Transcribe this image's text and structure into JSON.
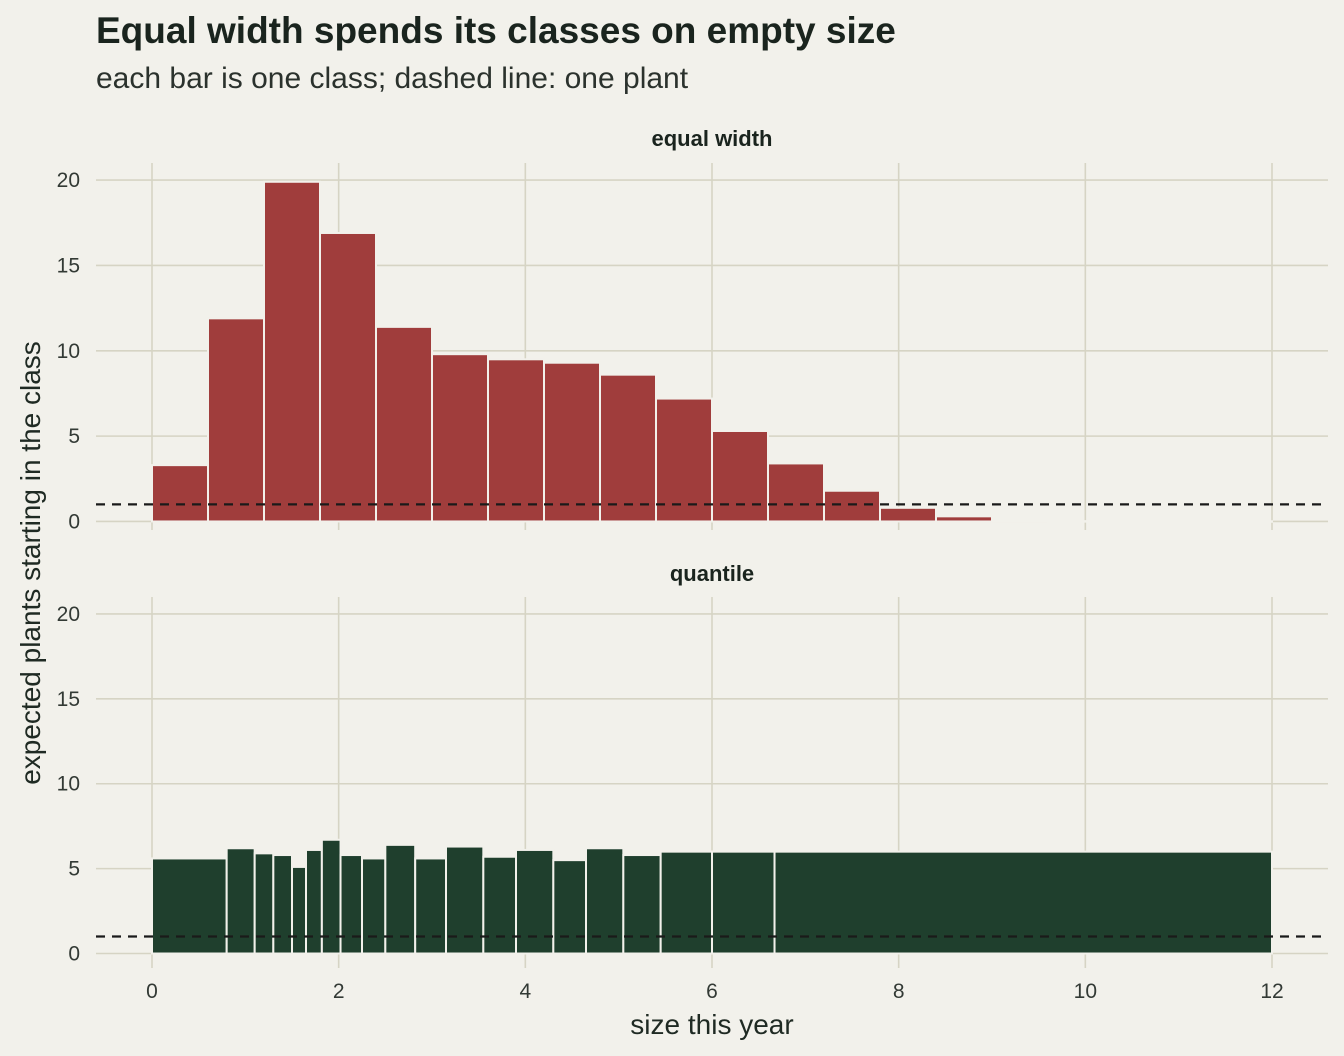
{
  "title": "Equal width spends its classes on empty size",
  "subtitle": "each bar is one class; dashed line: one plant",
  "colors": {
    "background": "#f2f1eb",
    "grid": "#d6d4c4",
    "equal_width": "#a03d3c",
    "quantile": "#1f3f2d",
    "reference_line": "#1a1a1a"
  },
  "chart_data": {
    "type": "bar",
    "xlabel": "size this year",
    "ylabel": "expected plants starting in the class",
    "xlim": [
      -0.6,
      12.6
    ],
    "ylim": [
      -0.5,
      21
    ],
    "x_ticks": [
      0,
      2,
      4,
      6,
      8,
      10,
      12
    ],
    "y_ticks": [
      0,
      5,
      10,
      15,
      20
    ],
    "grid": true,
    "reference_line": {
      "y": 1,
      "style": "dashed",
      "label": "one plant"
    },
    "panels": [
      {
        "label": "equal width",
        "bins": [
          {
            "x0": 0.0,
            "x1": 0.6,
            "value": 3.3
          },
          {
            "x0": 0.6,
            "x1": 1.2,
            "value": 11.9
          },
          {
            "x0": 1.2,
            "x1": 1.8,
            "value": 19.9
          },
          {
            "x0": 1.8,
            "x1": 2.4,
            "value": 16.9
          },
          {
            "x0": 2.4,
            "x1": 3.0,
            "value": 11.4
          },
          {
            "x0": 3.0,
            "x1": 3.6,
            "value": 9.8
          },
          {
            "x0": 3.6,
            "x1": 4.2,
            "value": 9.5
          },
          {
            "x0": 4.2,
            "x1": 4.8,
            "value": 9.3
          },
          {
            "x0": 4.8,
            "x1": 5.4,
            "value": 8.6
          },
          {
            "x0": 5.4,
            "x1": 6.0,
            "value": 7.2
          },
          {
            "x0": 6.0,
            "x1": 6.6,
            "value": 5.3
          },
          {
            "x0": 6.6,
            "x1": 7.2,
            "value": 3.4
          },
          {
            "x0": 7.2,
            "x1": 7.8,
            "value": 1.8
          },
          {
            "x0": 7.8,
            "x1": 8.4,
            "value": 0.8
          },
          {
            "x0": 8.4,
            "x1": 9.0,
            "value": 0.3
          },
          {
            "x0": 9.0,
            "x1": 9.6,
            "value": 0.05
          },
          {
            "x0": 9.6,
            "x1": 10.2,
            "value": 0.02
          },
          {
            "x0": 10.2,
            "x1": 10.8,
            "value": 0.01
          },
          {
            "x0": 10.8,
            "x1": 11.4,
            "value": 0.01
          },
          {
            "x0": 11.4,
            "x1": 12.0,
            "value": 0.01
          }
        ]
      },
      {
        "label": "quantile",
        "bins": [
          {
            "x0": 0.0,
            "x1": 0.8,
            "value": 5.6
          },
          {
            "x0": 0.8,
            "x1": 1.1,
            "value": 6.2
          },
          {
            "x0": 1.1,
            "x1": 1.3,
            "value": 5.9
          },
          {
            "x0": 1.3,
            "x1": 1.5,
            "value": 5.8
          },
          {
            "x0": 1.5,
            "x1": 1.65,
            "value": 5.1
          },
          {
            "x0": 1.65,
            "x1": 1.82,
            "value": 6.1
          },
          {
            "x0": 1.82,
            "x1": 2.02,
            "value": 6.7
          },
          {
            "x0": 2.02,
            "x1": 2.25,
            "value": 5.8
          },
          {
            "x0": 2.25,
            "x1": 2.5,
            "value": 5.6
          },
          {
            "x0": 2.5,
            "x1": 2.82,
            "value": 6.4
          },
          {
            "x0": 2.82,
            "x1": 3.15,
            "value": 5.6
          },
          {
            "x0": 3.15,
            "x1": 3.55,
            "value": 6.3
          },
          {
            "x0": 3.55,
            "x1": 3.9,
            "value": 5.7
          },
          {
            "x0": 3.9,
            "x1": 4.3,
            "value": 6.1
          },
          {
            "x0": 4.3,
            "x1": 4.65,
            "value": 5.5
          },
          {
            "x0": 4.65,
            "x1": 5.05,
            "value": 6.2
          },
          {
            "x0": 5.05,
            "x1": 5.45,
            "value": 5.8
          },
          {
            "x0": 5.45,
            "x1": 6.0,
            "value": 6.0
          },
          {
            "x0": 6.0,
            "x1": 6.67,
            "value": 6.0
          },
          {
            "x0": 6.67,
            "x1": 12.0,
            "value": 6.0
          }
        ]
      }
    ]
  }
}
